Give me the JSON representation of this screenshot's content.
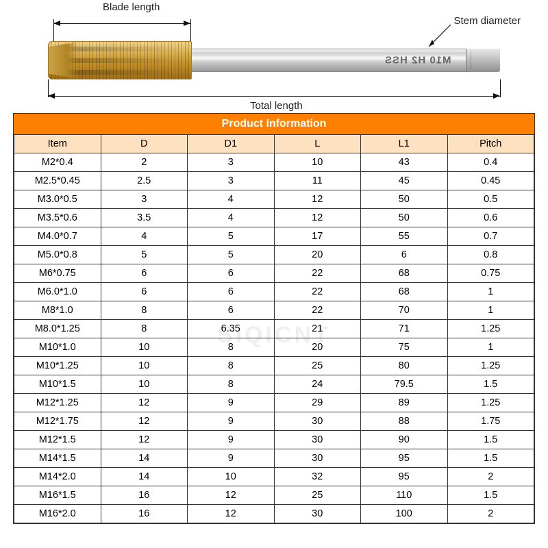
{
  "diagram": {
    "blade_label": "Blade length",
    "stem_label": "Stem diameter",
    "total_label": "Total length",
    "shank_marking": "M10 H2 HSS"
  },
  "watermark": "SIQICNT",
  "table": {
    "title": "Product Information",
    "title_bg": "#ff7f00",
    "title_color": "#ffffff",
    "header_bg": "#fde1c0",
    "columns": [
      "Item",
      "D",
      "D1",
      "L",
      "L1",
      "Pitch"
    ],
    "rows": [
      [
        "M2*0.4",
        "2",
        "3",
        "10",
        "43",
        "0.4"
      ],
      [
        "M2.5*0.45",
        "2.5",
        "3",
        "11",
        "45",
        "0.45"
      ],
      [
        "M3.0*0.5",
        "3",
        "4",
        "12",
        "50",
        "0.5"
      ],
      [
        "M3.5*0.6",
        "3.5",
        "4",
        "12",
        "50",
        "0.6"
      ],
      [
        "M4.0*0.7",
        "4",
        "5",
        "17",
        "55",
        "0.7"
      ],
      [
        "M5.0*0.8",
        "5",
        "5",
        "20",
        "6",
        "0.8"
      ],
      [
        "M6*0.75",
        "6",
        "6",
        "22",
        "68",
        "0.75"
      ],
      [
        "M6.0*1.0",
        "6",
        "6",
        "22",
        "68",
        "1"
      ],
      [
        "M8*1.0",
        "8",
        "6",
        "22",
        "70",
        "1"
      ],
      [
        "M8.0*1.25",
        "8",
        "6.35",
        "21",
        "71",
        "1.25"
      ],
      [
        "M10*1.0",
        "10",
        "8",
        "20",
        "75",
        "1"
      ],
      [
        "M10*1.25",
        "10",
        "8",
        "25",
        "80",
        "1.25"
      ],
      [
        "M10*1.5",
        "10",
        "8",
        "24",
        "79.5",
        "1.5"
      ],
      [
        "M12*1.25",
        "12",
        "9",
        "29",
        "89",
        "1.25"
      ],
      [
        "M12*1.75",
        "12",
        "9",
        "30",
        "88",
        "1.75"
      ],
      [
        "M12*1.5",
        "12",
        "9",
        "30",
        "90",
        "1.5"
      ],
      [
        "M14*1.5",
        "14",
        "9",
        "30",
        "95",
        "1.5"
      ],
      [
        "M14*2.0",
        "14",
        "10",
        "32",
        "95",
        "2"
      ],
      [
        "M16*1.5",
        "16",
        "12",
        "25",
        "110",
        "1.5"
      ],
      [
        "M16*2.0",
        "16",
        "12",
        "30",
        "100",
        "2"
      ]
    ]
  }
}
